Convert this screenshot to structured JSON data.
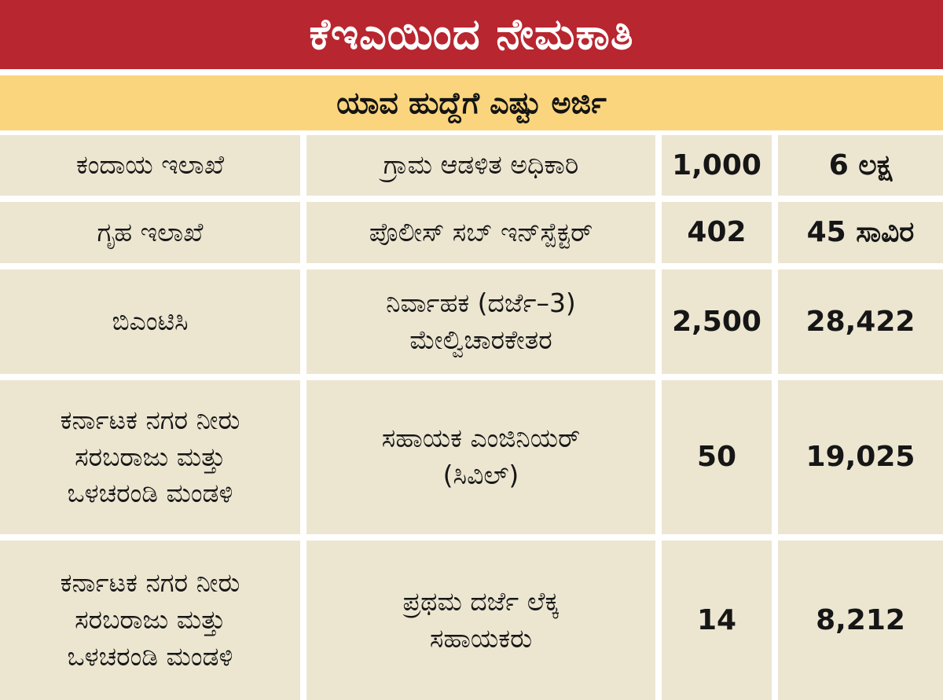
{
  "title": "ಕೆಇಎಯಿಂದ ನೇಮಕಾತಿ",
  "subtitle": "ಯಾವ ಹುದ್ದೆಗೆ ಎಷ್ಟು ಅರ್ಜಿ",
  "rows": [
    {
      "department": [
        "ಕಂದಾಯ ಇಲಾಖೆ"
      ],
      "post": [
        "ಗ್ರಾಮ ಆಡಳಿತ ಅಧಿಕಾರಿ"
      ],
      "vacancies": "1,000",
      "applications": "6 ಲಕ್ಷ"
    },
    {
      "department": [
        "ಗೃಹ ಇಲಾಖೆ"
      ],
      "post": [
        "ಪೊಲೀಸ್ ಸಬ್ ಇನ್‌ಸ್ಪೆಕ್ಟರ್"
      ],
      "vacancies": "402",
      "applications": "45 ಸಾವಿರ"
    },
    {
      "department": [
        "ಬಿಎಂಟಿಸಿ"
      ],
      "post": [
        "ನಿರ್ವಾಹಕ (ದರ್ಜೆ–3)",
        "ಮೇಲ್ವಿಚಾರಕೇತರ"
      ],
      "vacancies": "2,500",
      "applications": "28,422"
    },
    {
      "department": [
        "ಕರ್ನಾಟಕ ನಗರ ನೀರು",
        "ಸರಬರಾಜು ಮತ್ತು",
        "ಒಳಚರಂಡಿ ಮಂಡಳಿ"
      ],
      "post": [
        "ಸಹಾಯಕ ಎಂಜಿನಿಯರ್",
        "(ಸಿವಿಲ್)"
      ],
      "vacancies": "50",
      "applications": "19,025"
    },
    {
      "department": [
        "ಕರ್ನಾಟಕ ನಗರ ನೀರು",
        "ಸರಬರಾಜು ಮತ್ತು",
        "ಒಳಚರಂಡಿ ಮಂಡಳಿ"
      ],
      "post": [
        "ಪ್ರಥಮ ದರ್ಜೆ ಲೆಕ್ಕ",
        "ಸಹಾಯಕರು"
      ],
      "vacancies": "14",
      "applications": "8,212"
    }
  ],
  "colors": {
    "title_bg": "#b8262f",
    "subtitle_bg": "#fad57e",
    "cell_bg": "#ece6d1"
  }
}
